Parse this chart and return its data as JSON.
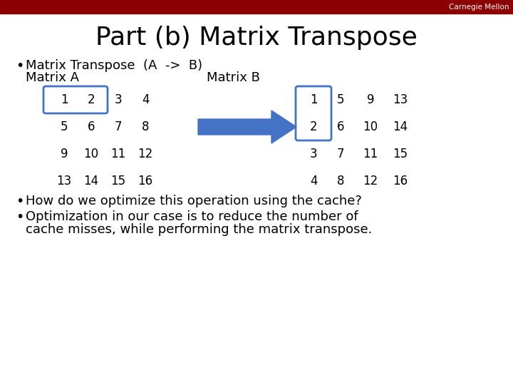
{
  "title": "Part (b) Matrix Transpose",
  "bg_color": "#ffffff",
  "header_bar_color": "#8B0000",
  "cmu_text": "Carnegie Mellon",
  "cmu_text_color": "#ffffff",
  "title_fontsize": 26,
  "bullet1_line1": "Matrix Transpose  (A  ->  B)",
  "bullet1_line2a": "Matrix A",
  "bullet1_line2b": "Matrix B",
  "bullet2": "How do we optimize this operation using the cache?",
  "bullet3a": "Optimization in our case is to reduce the number of",
  "bullet3b": "cache misses, while performing the matrix transpose.",
  "matrix_A": [
    [
      1,
      2,
      3,
      4
    ],
    [
      5,
      6,
      7,
      8
    ],
    [
      9,
      10,
      11,
      12
    ],
    [
      13,
      14,
      15,
      16
    ]
  ],
  "matrix_B": [
    [
      1,
      5,
      9,
      13
    ],
    [
      2,
      6,
      10,
      14
    ],
    [
      3,
      7,
      11,
      15
    ],
    [
      4,
      8,
      12,
      16
    ]
  ],
  "box_color": "#4472C4",
  "arrow_color": "#4472C4",
  "text_color": "#000000",
  "matrix_fontsize": 12,
  "bullet_fontsize": 13,
  "cmu_fontsize": 7.5
}
